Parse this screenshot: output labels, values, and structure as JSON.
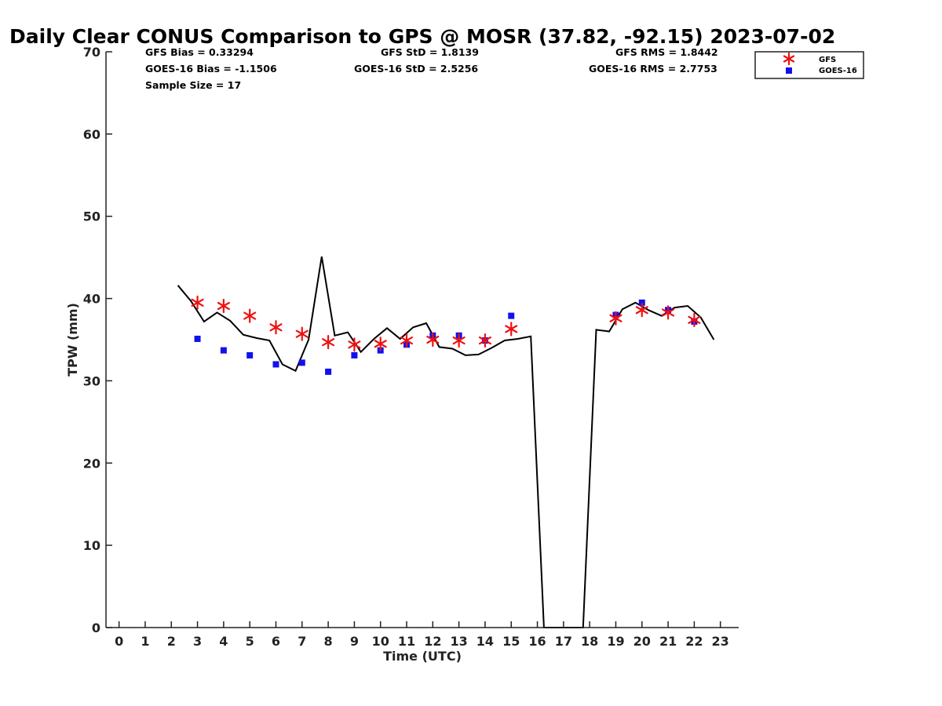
{
  "chart_data": {
    "type": "line",
    "title": "Daily Clear CONUS Comparison to GPS @ MOSR (37.82, -92.15) 2023-07-02",
    "xlabel": "Time (UTC)",
    "ylabel": "TPW (mm)",
    "xlim": [
      -0.5,
      23.7
    ],
    "ylim": [
      0,
      70
    ],
    "x_ticks": [
      0,
      1,
      2,
      3,
      4,
      5,
      6,
      7,
      8,
      9,
      10,
      11,
      12,
      13,
      14,
      15,
      16,
      17,
      18,
      19,
      20,
      21,
      22,
      23
    ],
    "y_ticks": [
      0,
      10,
      20,
      30,
      40,
      50,
      60,
      70
    ],
    "grid": false,
    "legend_position": "top-right",
    "stats": {
      "gfs_bias": "GFS Bias = 0.33294",
      "goes_bias": "GOES-16 Bias = -1.1506",
      "sample_size": "Sample Size = 17",
      "gfs_std": "GFS StD = 1.8139",
      "goes_std": "GOES-16 StD = 2.5256",
      "gfs_rms": "GFS RMS = 1.8442",
      "goes_rms": "GOES-16 RMS = 2.7753"
    },
    "series": [
      {
        "style": "line",
        "color": "#000000",
        "x": [
          2.25,
          2.75,
          3.25,
          3.75,
          4.25,
          4.75,
          5.25,
          5.75,
          6.25,
          6.75,
          7.25,
          7.75,
          8.25,
          8.75,
          9.25,
          9.75,
          10.25,
          10.75,
          11.25,
          11.75,
          12.25,
          12.75,
          13.25,
          13.75,
          14.25,
          14.75,
          15.25,
          15.75,
          16.25,
          17.75,
          18.25,
          18.75,
          19.25,
          19.75,
          20.25,
          20.75,
          21.25,
          21.75,
          22.25,
          22.75
        ],
        "values": [
          41.6,
          39.7,
          37.2,
          38.3,
          37.3,
          35.6,
          35.2,
          34.9,
          32.0,
          31.2,
          35.0,
          45.1,
          35.5,
          35.9,
          33.5,
          35.1,
          36.4,
          35.1,
          36.5,
          37.0,
          34.1,
          33.9,
          33.1,
          33.2,
          34.0,
          34.9,
          35.1,
          35.4,
          0,
          0,
          36.2,
          36.0,
          38.7,
          39.5,
          38.6,
          37.9,
          38.9,
          39.1,
          37.7,
          35.0
        ]
      },
      {
        "name": "GFS",
        "style": "asterisk",
        "color": "#ee1111",
        "x": [
          3,
          4,
          5,
          6,
          7,
          8,
          9,
          10,
          11,
          12,
          13,
          14,
          15,
          19,
          20,
          21,
          22
        ],
        "values": [
          39.5,
          39.1,
          37.9,
          36.5,
          35.7,
          34.7,
          34.4,
          34.5,
          34.9,
          35.0,
          34.9,
          34.9,
          36.3,
          37.6,
          38.6,
          38.3,
          37.4
        ]
      },
      {
        "name": "GOES-16",
        "style": "square",
        "color": "#1111ee",
        "x": [
          3,
          4,
          5,
          6,
          7,
          8,
          9,
          10,
          11,
          12,
          13,
          14,
          15,
          19,
          20,
          21,
          22
        ],
        "values": [
          35.1,
          33.7,
          33.1,
          32.0,
          32.2,
          31.1,
          33.1,
          33.7,
          34.4,
          35.5,
          35.5,
          34.9,
          37.9,
          38.0,
          39.5,
          38.6,
          37.2
        ]
      }
    ]
  }
}
